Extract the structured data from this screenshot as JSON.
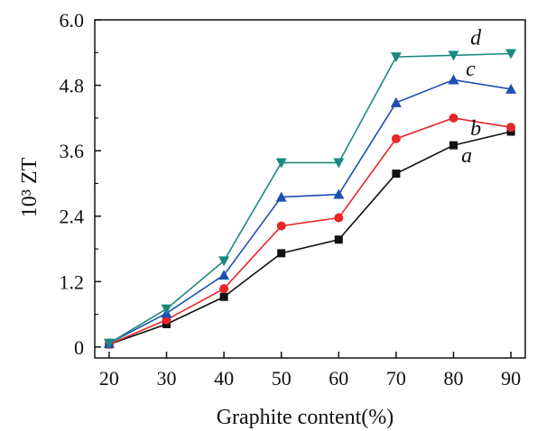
{
  "chart_data": {
    "type": "line",
    "title": "",
    "xlabel": "Graphite content(%)",
    "ylabel": "10³ ZT",
    "x": [
      20,
      30,
      40,
      50,
      60,
      70,
      80,
      90
    ],
    "xlim": [
      17.5,
      92.5
    ],
    "ylim": [
      -0.2,
      6.0
    ],
    "x_ticks": [
      "20",
      "30",
      "40",
      "50",
      "60",
      "70",
      "80",
      "90"
    ],
    "y_ticks": [
      {
        "value": 0,
        "label": "0"
      },
      {
        "value": 1.2,
        "label": "1.2"
      },
      {
        "value": 2.4,
        "label": "2.4"
      },
      {
        "value": 3.6,
        "label": "3.6"
      },
      {
        "value": 4.8,
        "label": "4.8"
      },
      {
        "value": 6.0,
        "label": "6.0"
      }
    ],
    "grid": false,
    "series": [
      {
        "name": "a",
        "color": "#111111",
        "marker": "square",
        "values": [
          0.05,
          0.42,
          0.92,
          1.72,
          1.97,
          3.18,
          3.7,
          3.95
        ]
      },
      {
        "name": "b",
        "color": "#e8262a",
        "marker": "circle",
        "values": [
          0.05,
          0.5,
          1.07,
          2.22,
          2.37,
          3.82,
          4.2,
          4.03
        ]
      },
      {
        "name": "c",
        "color": "#1f4fb0",
        "marker": "triangle-up",
        "values": [
          0.07,
          0.62,
          1.32,
          2.75,
          2.8,
          4.48,
          4.9,
          4.73
        ]
      },
      {
        "name": "d",
        "color": "#1a8a80",
        "marker": "triangle-down",
        "values": [
          0.07,
          0.7,
          1.58,
          3.38,
          3.38,
          5.32,
          5.35,
          5.38
        ]
      }
    ]
  }
}
